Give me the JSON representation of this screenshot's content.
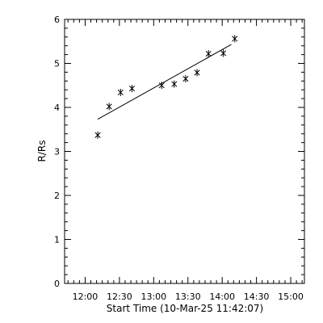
{
  "chart_data": {
    "type": "scatter",
    "title": "",
    "xlabel": "Start Time (10-Mar-25 11:42:07)",
    "ylabel": "R/Rs",
    "x_ticks": [
      "12:00",
      "12:30",
      "13:00",
      "13:30",
      "14:00",
      "14:30",
      "15:00"
    ],
    "y_ticks": [
      "0",
      "1",
      "2",
      "3",
      "4",
      "5",
      "6"
    ],
    "xlim": [
      "11:42",
      "15:12"
    ],
    "ylim": [
      0,
      6
    ],
    "grid": false,
    "legend": "none",
    "series": [
      {
        "marker": "asterisk",
        "points": [
          {
            "x": "12:11",
            "y": 3.37
          },
          {
            "x": "12:21",
            "y": 4.02
          },
          {
            "x": "12:31",
            "y": 4.34
          },
          {
            "x": "12:41",
            "y": 4.43
          },
          {
            "x": "13:07",
            "y": 4.5
          },
          {
            "x": "13:18",
            "y": 4.53
          },
          {
            "x": "13:28",
            "y": 4.65
          },
          {
            "x": "13:38",
            "y": 4.79
          },
          {
            "x": "13:48",
            "y": 5.22
          },
          {
            "x": "14:01",
            "y": 5.23
          },
          {
            "x": "14:11",
            "y": 5.56
          }
        ]
      }
    ],
    "fit_line": {
      "x": [
        "12:11",
        "14:08"
      ],
      "y": [
        3.73,
        5.43
      ]
    },
    "colors": {
      "ink": "#000000",
      "background": "#ffffff"
    }
  }
}
